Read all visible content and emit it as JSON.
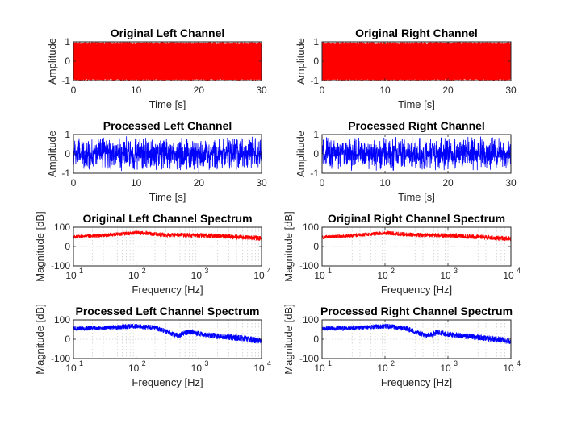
{
  "chart_data": [
    {
      "type": "line",
      "title": "Original Left Channel",
      "xlabel": "Time [s]",
      "ylabel": "Amplitude",
      "xscale": "linear",
      "xlim": [
        0,
        30
      ],
      "ylim": [
        -1,
        1
      ],
      "xticks": [
        0,
        10,
        20,
        30
      ],
      "xticklabels": [
        "0",
        "10",
        "20",
        "30"
      ],
      "yticks": [
        -1,
        0,
        1
      ],
      "yticklabels": [
        "-1",
        "0",
        "1"
      ],
      "grid": false,
      "series": [
        {
          "color": "#ff0000",
          "signal": "dense noise",
          "envelope": [
            [
              0,
              0.98
            ],
            [
              30,
              0.98
            ]
          ]
        }
      ]
    },
    {
      "type": "line",
      "title": "Original Right Channel",
      "xlabel": "Time [s]",
      "ylabel": "Amplitude",
      "xscale": "linear",
      "xlim": [
        0,
        30
      ],
      "ylim": [
        -1,
        1
      ],
      "xticks": [
        0,
        10,
        20,
        30
      ],
      "xticklabels": [
        "0",
        "10",
        "20",
        "30"
      ],
      "yticks": [
        -1,
        0,
        1
      ],
      "yticklabels": [
        "-1",
        "0",
        "1"
      ],
      "grid": false,
      "series": [
        {
          "color": "#ff0000",
          "signal": "dense noise",
          "envelope": [
            [
              0,
              0.98
            ],
            [
              30,
              0.98
            ]
          ]
        }
      ]
    },
    {
      "type": "line",
      "title": "Processed Left Channel",
      "xlabel": "Time [s]",
      "ylabel": "Amplitude",
      "xscale": "linear",
      "xlim": [
        0,
        30
      ],
      "ylim": [
        -1,
        1
      ],
      "xticks": [
        0,
        10,
        20,
        30
      ],
      "xticklabels": [
        "0",
        "10",
        "20",
        "30"
      ],
      "yticks": [
        -1,
        0,
        1
      ],
      "yticklabels": [
        "-1",
        "0",
        "1"
      ],
      "grid": false,
      "series": [
        {
          "color": "#0000ff",
          "signal": "noise",
          "envelope": [
            [
              0,
              0.9
            ],
            [
              10,
              0.95
            ],
            [
              20,
              0.95
            ],
            [
              30,
              0.92
            ]
          ]
        }
      ]
    },
    {
      "type": "line",
      "title": "Processed Right Channel",
      "xlabel": "Time [s]",
      "ylabel": "Amplitude",
      "xscale": "linear",
      "xlim": [
        0,
        30
      ],
      "ylim": [
        -1,
        1
      ],
      "xticks": [
        0,
        10,
        20,
        30
      ],
      "xticklabels": [
        "0",
        "10",
        "20",
        "30"
      ],
      "yticks": [
        -1,
        0,
        1
      ],
      "yticklabels": [
        "-1",
        "0",
        "1"
      ],
      "grid": false,
      "series": [
        {
          "color": "#0000ff",
          "signal": "noise",
          "envelope": [
            [
              0,
              0.9
            ],
            [
              10,
              0.95
            ],
            [
              20,
              0.95
            ],
            [
              30,
              0.92
            ]
          ]
        }
      ]
    },
    {
      "type": "line",
      "title": "Original Left Channel Spectrum",
      "xlabel": "Frequency [Hz]",
      "ylabel": "Magnitude [dB]",
      "xscale": "log",
      "xlim": [
        10,
        10000
      ],
      "ylim": [
        -100,
        100
      ],
      "xticks": [
        10,
        100,
        1000,
        10000
      ],
      "xticklabels": [
        [
          "10",
          "1"
        ],
        [
          "10",
          "2"
        ],
        [
          "10",
          "3"
        ],
        [
          "10",
          "4"
        ]
      ],
      "yticks": [
        -100,
        0,
        100
      ],
      "yticklabels": [
        "-100",
        "0",
        "100"
      ],
      "grid": true,
      "series": [
        {
          "color": "#ff0000",
          "spread": 9,
          "points": [
            [
              10,
              50
            ],
            [
              30,
              58
            ],
            [
              100,
              72
            ],
            [
              300,
              60
            ],
            [
              1000,
              58
            ],
            [
              3000,
              52
            ],
            [
              10000,
              42
            ]
          ]
        }
      ]
    },
    {
      "type": "line",
      "title": "Original Right Channel Spectrum",
      "xlabel": "Frequency [Hz]",
      "ylabel": "Magnitude [dB]",
      "xscale": "log",
      "xlim": [
        10,
        10000
      ],
      "ylim": [
        -100,
        100
      ],
      "xticks": [
        10,
        100,
        1000,
        10000
      ],
      "xticklabels": [
        [
          "10",
          "1"
        ],
        [
          "10",
          "2"
        ],
        [
          "10",
          "3"
        ],
        [
          "10",
          "4"
        ]
      ],
      "yticks": [
        -100,
        0,
        100
      ],
      "yticklabels": [
        "-100",
        "0",
        "100"
      ],
      "grid": true,
      "series": [
        {
          "color": "#ff0000",
          "spread": 9,
          "points": [
            [
              10,
              48
            ],
            [
              30,
              56
            ],
            [
              100,
              70
            ],
            [
              300,
              60
            ],
            [
              1000,
              57
            ],
            [
              3000,
              50
            ],
            [
              10000,
              40
            ]
          ]
        }
      ]
    },
    {
      "type": "line",
      "title": "Processed Left Channel Spectrum",
      "xlabel": "Frequency [Hz]",
      "ylabel": "Magnitude [dB]",
      "xscale": "log",
      "xlim": [
        10,
        10000
      ],
      "ylim": [
        -100,
        100
      ],
      "xticks": [
        10,
        100,
        1000,
        10000
      ],
      "xticklabels": [
        [
          "10",
          "1"
        ],
        [
          "10",
          "2"
        ],
        [
          "10",
          "3"
        ],
        [
          "10",
          "4"
        ]
      ],
      "yticks": [
        -100,
        0,
        100
      ],
      "yticklabels": [
        "-100",
        "0",
        "100"
      ],
      "grid": true,
      "series": [
        {
          "color": "#0000ff",
          "spread": 11,
          "points": [
            [
              10,
              55
            ],
            [
              30,
              58
            ],
            [
              100,
              68
            ],
            [
              200,
              60
            ],
            [
              300,
              40
            ],
            [
              450,
              18
            ],
            [
              700,
              38
            ],
            [
              1000,
              28
            ],
            [
              2000,
              16
            ],
            [
              5000,
              5
            ],
            [
              10000,
              -10
            ]
          ]
        }
      ]
    },
    {
      "type": "line",
      "title": "Processed Right Channel Spectrum",
      "xlabel": "Frequency [Hz]",
      "ylabel": "Magnitude [dB]",
      "xscale": "log",
      "xlim": [
        10,
        10000
      ],
      "ylim": [
        -100,
        100
      ],
      "xticks": [
        10,
        100,
        1000,
        10000
      ],
      "xticklabels": [
        [
          "10",
          "1"
        ],
        [
          "10",
          "2"
        ],
        [
          "10",
          "3"
        ],
        [
          "10",
          "4"
        ]
      ],
      "yticks": [
        -100,
        0,
        100
      ],
      "yticklabels": [
        "-100",
        "0",
        "100"
      ],
      "grid": true,
      "series": [
        {
          "color": "#0000ff",
          "spread": 11,
          "points": [
            [
              10,
              55
            ],
            [
              30,
              58
            ],
            [
              100,
              68
            ],
            [
              200,
              58
            ],
            [
              300,
              40
            ],
            [
              450,
              18
            ],
            [
              700,
              36
            ],
            [
              1000,
              26
            ],
            [
              2000,
              15
            ],
            [
              5000,
              3
            ],
            [
              10000,
              -12
            ]
          ]
        }
      ]
    }
  ]
}
